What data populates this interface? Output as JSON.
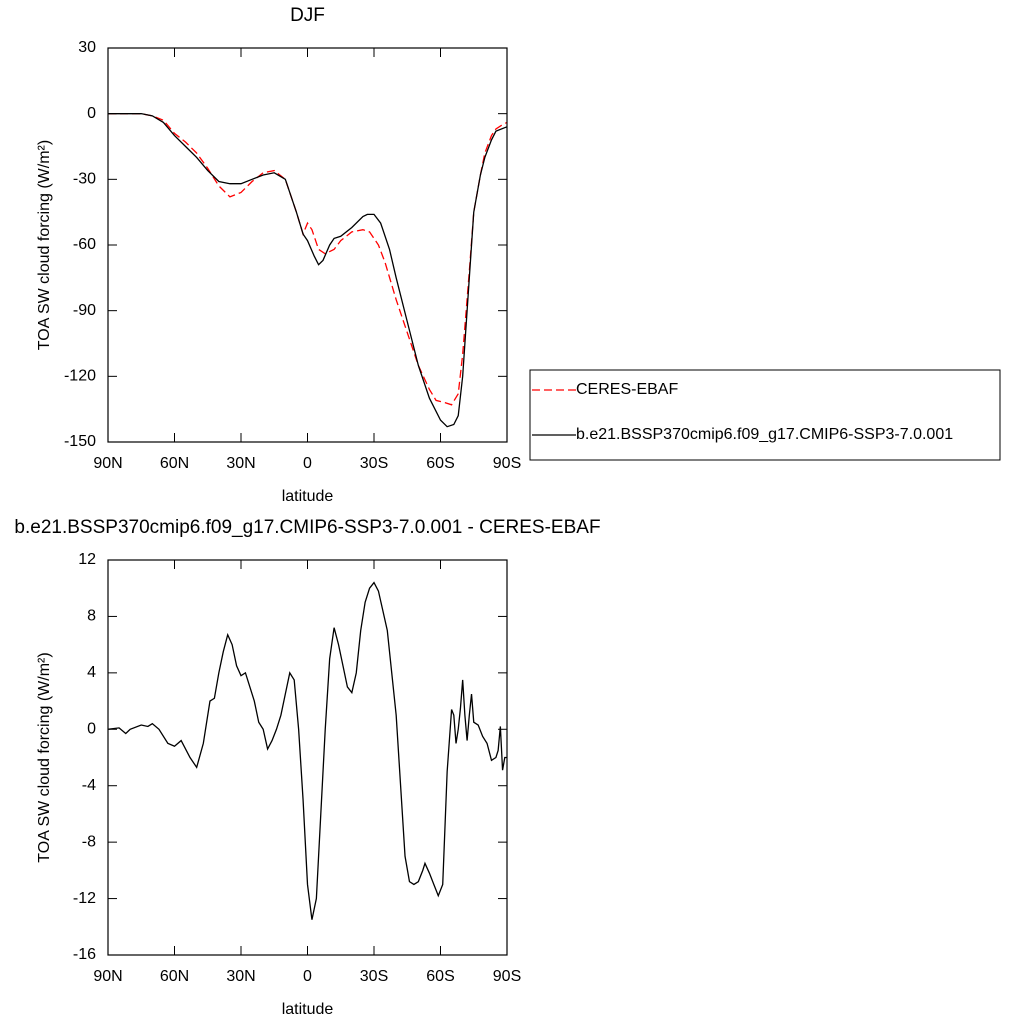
{
  "chart_data": [
    {
      "type": "line",
      "title": "DJF",
      "xlabel": "latitude",
      "ylabel": "TOA SW cloud forcing (W/m²)",
      "xlim": [
        90,
        -90
      ],
      "ylim": [
        -150,
        30
      ],
      "xticks": [
        {
          "value": 90,
          "label": "90N"
        },
        {
          "value": 60,
          "label": "60N"
        },
        {
          "value": 30,
          "label": "30N"
        },
        0,
        {
          "value": -30,
          "label": "30S"
        },
        {
          "value": -60,
          "label": "60S"
        },
        {
          "value": -90,
          "label": "90S"
        }
      ],
      "yticks": [
        -150,
        -120,
        -90,
        -60,
        -30,
        0,
        30
      ],
      "legend": "right",
      "series": [
        {
          "name": "CERES-EBAF",
          "color": "#ff0000",
          "line_style": "dashed",
          "x": [
            90,
            85,
            80,
            75,
            70,
            65,
            60,
            55,
            50,
            45,
            40,
            35,
            30,
            25,
            20,
            15,
            10,
            5,
            2,
            0,
            -2,
            -5,
            -8,
            -12,
            -15,
            -20,
            -25,
            -28,
            -32,
            -35,
            -40,
            -45,
            -50,
            -55,
            -58,
            -62,
            -65,
            -68,
            -70,
            -73,
            -75,
            -78,
            -80,
            -83,
            -85,
            -88,
            -90
          ],
          "values": [
            0,
            0,
            0,
            0,
            -1,
            -3,
            -9,
            -13,
            -18,
            -25,
            -33,
            -38,
            -36,
            -31,
            -27,
            -26,
            -30,
            -45,
            -55,
            -50,
            -53,
            -62,
            -64,
            -62,
            -58,
            -54,
            -53,
            -54,
            -60,
            -68,
            -85,
            -100,
            -115,
            -126,
            -131,
            -132,
            -133,
            -128,
            -110,
            -72,
            -45,
            -28,
            -18,
            -10,
            -7,
            -5,
            -4
          ]
        },
        {
          "name": "b.e21.BSSP370cmip6.f09_g17.CMIP6-SSP3-7.0.001",
          "color": "#000000",
          "line_style": "solid",
          "x": [
            90,
            85,
            80,
            75,
            70,
            65,
            60,
            55,
            50,
            45,
            40,
            35,
            30,
            25,
            20,
            15,
            10,
            5,
            2,
            0,
            -3,
            -5,
            -7,
            -10,
            -12,
            -15,
            -20,
            -25,
            -27,
            -30,
            -33,
            -37,
            -40,
            -45,
            -50,
            -55,
            -60,
            -63,
            -66,
            -68,
            -70,
            -73,
            -75,
            -78,
            -80,
            -83,
            -85,
            -90
          ],
          "values": [
            0,
            0,
            0,
            0,
            -1,
            -4,
            -10,
            -15,
            -20,
            -26,
            -31,
            -32,
            -32,
            -30,
            -28,
            -27,
            -30,
            -45,
            -55,
            -58,
            -65,
            -69,
            -67,
            -60,
            -57,
            -56,
            -52,
            -47,
            -46,
            -46,
            -50,
            -62,
            -75,
            -95,
            -115,
            -130,
            -140,
            -143,
            -142,
            -138,
            -120,
            -75,
            -45,
            -28,
            -20,
            -12,
            -8,
            -6
          ]
        }
      ]
    },
    {
      "type": "line",
      "title": "b.e21.BSSP370cmip6.f09_g17.CMIP6-SSP3-7.0.001 - CERES-EBAF",
      "xlabel": "latitude",
      "ylabel": "TOA SW cloud forcing (W/m²)",
      "xlim": [
        90,
        -90
      ],
      "ylim": [
        -16,
        12
      ],
      "xticks": [
        {
          "value": 90,
          "label": "90N"
        },
        {
          "value": 60,
          "label": "60N"
        },
        {
          "value": 30,
          "label": "30N"
        },
        0,
        {
          "value": -30,
          "label": "30S"
        },
        {
          "value": -60,
          "label": "60S"
        },
        {
          "value": -90,
          "label": "90S"
        }
      ],
      "yticks": [
        -16,
        -12,
        -8,
        -4,
        0,
        4,
        8,
        12
      ],
      "series": [
        {
          "color": "#000000",
          "line_style": "solid",
          "x": [
            90,
            85,
            82,
            80,
            75,
            72,
            70,
            67,
            63,
            60,
            57,
            53,
            50,
            47,
            44,
            42,
            40,
            38,
            36,
            34,
            32,
            30,
            28,
            26,
            24,
            22,
            20,
            18,
            16,
            14,
            12,
            10,
            8,
            6,
            4,
            2,
            0,
            -2,
            -4,
            -6,
            -8,
            -10,
            -12,
            -14,
            -16,
            -18,
            -20,
            -22,
            -24,
            -26,
            -28,
            -30,
            -32,
            -34,
            -36,
            -38,
            -40,
            -42,
            -44,
            -46,
            -48,
            -50,
            -52,
            -53,
            -55,
            -57,
            -59,
            -61,
            -63,
            -65,
            -66,
            -67,
            -68,
            -69,
            -70,
            -71,
            -72,
            -73,
            -74,
            -75,
            -77,
            -79,
            -81,
            -83,
            -85,
            -86,
            -87,
            -88,
            -89,
            -90
          ],
          "values": [
            0,
            0.1,
            -0.3,
            0,
            0.3,
            0.2,
            0.4,
            0,
            -1,
            -1.2,
            -0.8,
            -2,
            -2.7,
            -1,
            2,
            2.2,
            4,
            5.5,
            6.7,
            6,
            4.5,
            3.8,
            4,
            3,
            2,
            0.5,
            0,
            -1.4,
            -0.8,
            0,
            1,
            2.5,
            4,
            3.5,
            0,
            -5,
            -11,
            -13.5,
            -12,
            -6,
            0,
            5,
            7.2,
            6,
            4.5,
            3,
            2.6,
            4,
            7,
            9,
            10,
            10.4,
            9.8,
            8.4,
            7,
            4,
            1,
            -4,
            -9,
            -10.8,
            -11,
            -10.8,
            -10,
            -9.5,
            -10.2,
            -11,
            -11.8,
            -11,
            -3,
            1.4,
            1,
            -1,
            0,
            1.5,
            3.5,
            1,
            -0.8,
            1,
            2.5,
            0.5,
            0.3,
            -0.5,
            -1,
            -2.2,
            -2,
            -1.5,
            0.2,
            -2.9,
            -2,
            -2
          ]
        }
      ]
    }
  ]
}
